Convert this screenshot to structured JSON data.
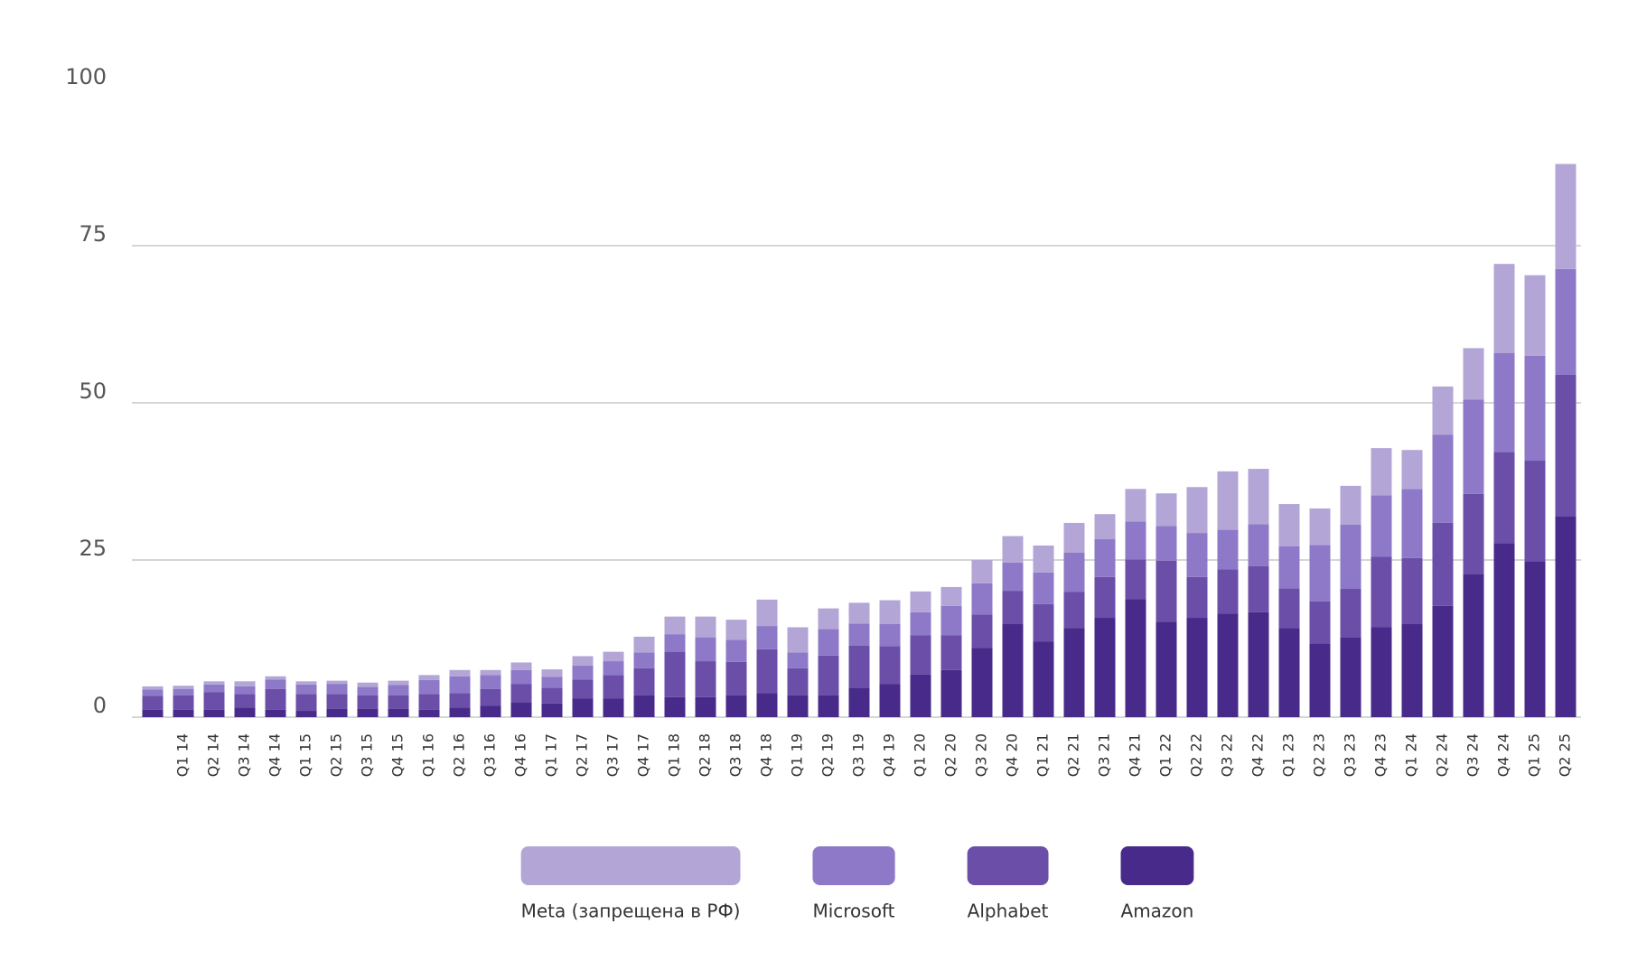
{
  "chart_data": {
    "type": "stacked_bar",
    "categories": [
      null,
      "Q1 14",
      "Q2 14",
      "Q3 14",
      "Q4 14",
      "Q1 15",
      "Q2 15",
      "Q3 15",
      "Q4 15",
      "Q1 16",
      "Q2 16",
      "Q3 16",
      "Q4 16",
      "Q1 17",
      "Q2 17",
      "Q3 17",
      "Q4 17",
      "Q1 18",
      "Q2 18",
      "Q3 18",
      "Q4 18",
      "Q1 19",
      "Q2 19",
      "Q3 19",
      "Q4 19",
      "Q1 20",
      "Q2 20",
      "Q3 20",
      "Q4 20",
      "Q1 21",
      "Q2 21",
      "Q3 21",
      "Q4 21",
      "Q1 22",
      "Q2 22",
      "Q3 22",
      "Q4 22",
      "Q1 23",
      "Q2 23",
      "Q3 23",
      "Q4 23",
      "Q1 24",
      "Q2 24",
      "Q3 24",
      "Q4 24",
      "Q1 25",
      "Q2 25"
    ],
    "series": [
      {
        "name": "Amazon",
        "color": "#472a8a",
        "values": [
          1.2,
          1.2,
          1.2,
          1.5,
          1.2,
          1.0,
          1.3,
          1.3,
          1.3,
          1.2,
          1.5,
          1.8,
          2.3,
          2.2,
          3.0,
          3.0,
          3.5,
          3.2,
          3.2,
          3.5,
          3.8,
          3.5,
          3.5,
          4.7,
          5.3,
          6.8,
          7.5,
          11.0,
          14.8,
          12.0,
          14.2,
          15.8,
          18.8,
          15.2,
          15.8,
          16.5,
          16.7,
          14.2,
          11.7,
          12.7,
          14.3,
          14.8,
          17.7,
          22.7,
          27.7,
          24.8,
          32.0
        ]
      },
      {
        "name": "Alphabet",
        "color": "#6a4ea8",
        "values": [
          2.2,
          2.3,
          2.8,
          2.2,
          3.3,
          2.7,
          2.4,
          2.2,
          2.2,
          2.5,
          2.3,
          2.7,
          3.0,
          2.5,
          3.0,
          3.7,
          4.3,
          7.2,
          5.7,
          5.3,
          7.0,
          4.3,
          6.3,
          6.7,
          6.0,
          6.2,
          5.5,
          5.3,
          5.3,
          6.0,
          5.7,
          6.5,
          6.3,
          9.7,
          6.5,
          7.0,
          7.3,
          6.3,
          6.7,
          7.7,
          11.2,
          10.5,
          13.2,
          12.8,
          14.5,
          16.0,
          22.5
        ]
      },
      {
        "name": "Microsoft",
        "color": "#8d79c7",
        "values": [
          1.0,
          1.0,
          1.2,
          1.2,
          1.5,
          1.5,
          1.6,
          1.3,
          1.6,
          2.2,
          2.7,
          2.2,
          2.2,
          1.7,
          2.2,
          2.2,
          2.5,
          2.8,
          3.8,
          3.5,
          3.7,
          2.5,
          4.2,
          3.5,
          3.5,
          3.7,
          4.7,
          5.0,
          4.5,
          5.0,
          6.3,
          6.0,
          6.0,
          5.5,
          7.0,
          6.3,
          6.7,
          6.7,
          9.0,
          10.2,
          9.8,
          11.0,
          14.0,
          15.0,
          15.7,
          16.7,
          16.8
        ]
      },
      {
        "name": "Meta (запрещена в РФ)",
        "color": "#b3a5d6",
        "values": [
          0.5,
          0.5,
          0.5,
          0.8,
          0.5,
          0.5,
          0.5,
          0.7,
          0.7,
          0.8,
          1.0,
          0.8,
          1.2,
          1.2,
          1.5,
          1.5,
          2.5,
          2.8,
          3.3,
          3.2,
          4.2,
          4.0,
          3.3,
          3.3,
          3.8,
          3.3,
          3.0,
          3.7,
          4.2,
          4.3,
          4.7,
          4.0,
          5.2,
          5.2,
          7.3,
          9.3,
          8.8,
          6.7,
          5.8,
          6.2,
          7.5,
          6.2,
          7.7,
          8.2,
          14.2,
          12.8,
          16.7
        ]
      }
    ],
    "ylim": [
      0,
      100
    ],
    "yticks": [
      0,
      25,
      50,
      75,
      100
    ],
    "grid": true,
    "legend": "bottom"
  }
}
